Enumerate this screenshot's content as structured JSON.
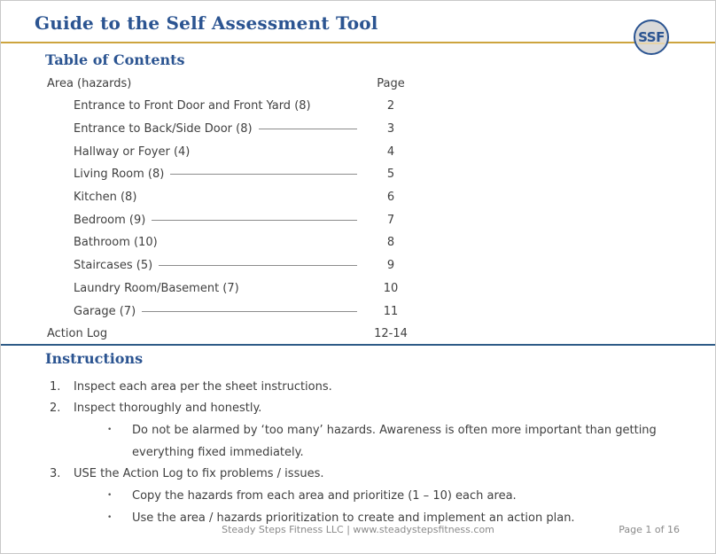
{
  "header": {
    "title": "Guide to the Self Assessment Tool",
    "logo_text": "SSF"
  },
  "toc": {
    "heading": "Table of Contents",
    "col_area": "Area (hazards)",
    "col_page": "Page",
    "rows": [
      {
        "label": "Entrance to Front Door and Front Yard (8)",
        "page": "2",
        "leader": false,
        "indent": true
      },
      {
        "label": "Entrance to Back/Side Door (8)",
        "page": "3",
        "leader": true,
        "indent": true
      },
      {
        "label": "Hallway or Foyer (4)",
        "page": "4",
        "leader": false,
        "indent": true
      },
      {
        "label": "Living Room (8)",
        "page": "5",
        "leader": true,
        "indent": true
      },
      {
        "label": "Kitchen (8)",
        "page": "6",
        "leader": false,
        "indent": true
      },
      {
        "label": "Bedroom (9)",
        "page": "7",
        "leader": true,
        "indent": true
      },
      {
        "label": "Bathroom (10)",
        "page": "8",
        "leader": false,
        "indent": true
      },
      {
        "label": "Staircases (5)",
        "page": "9",
        "leader": true,
        "indent": true
      },
      {
        "label": "Laundry Room/Basement (7)",
        "page": "10",
        "leader": false,
        "indent": true
      },
      {
        "label": "Garage (7)",
        "page": "11",
        "leader": true,
        "indent": true
      },
      {
        "label": "Action Log",
        "page": "12-14",
        "leader": false,
        "indent": false
      }
    ]
  },
  "instructions": {
    "heading": "Instructions",
    "bullet_glyph": "•",
    "items": [
      {
        "num": "1.",
        "text": "Inspect each area per the sheet instructions.",
        "bullets": []
      },
      {
        "num": "2.",
        "text": "Inspect thoroughly and honestly.",
        "bullets": [
          "Do not be alarmed by ‘too many’ hazards. Awareness is often more important than getting everything fixed immediately."
        ]
      },
      {
        "num": "3.",
        "text": "USE the Action Log to fix problems / issues.",
        "bullets": [
          "Copy the hazards from each area and prioritize (1 – 10) each area.",
          "Use the area / hazards prioritization to create and implement an action plan."
        ]
      }
    ]
  },
  "footer": {
    "center": "Steady Steps Fitness LLC | www.steadystepsfitness.com",
    "right": "Page 1 of 16"
  },
  "colors": {
    "heading_blue": "#2b5491",
    "gold": "#cda43e",
    "divider_blue": "#2e5b87",
    "body_text": "#404040",
    "footer_gray": "#8a8a8a"
  }
}
